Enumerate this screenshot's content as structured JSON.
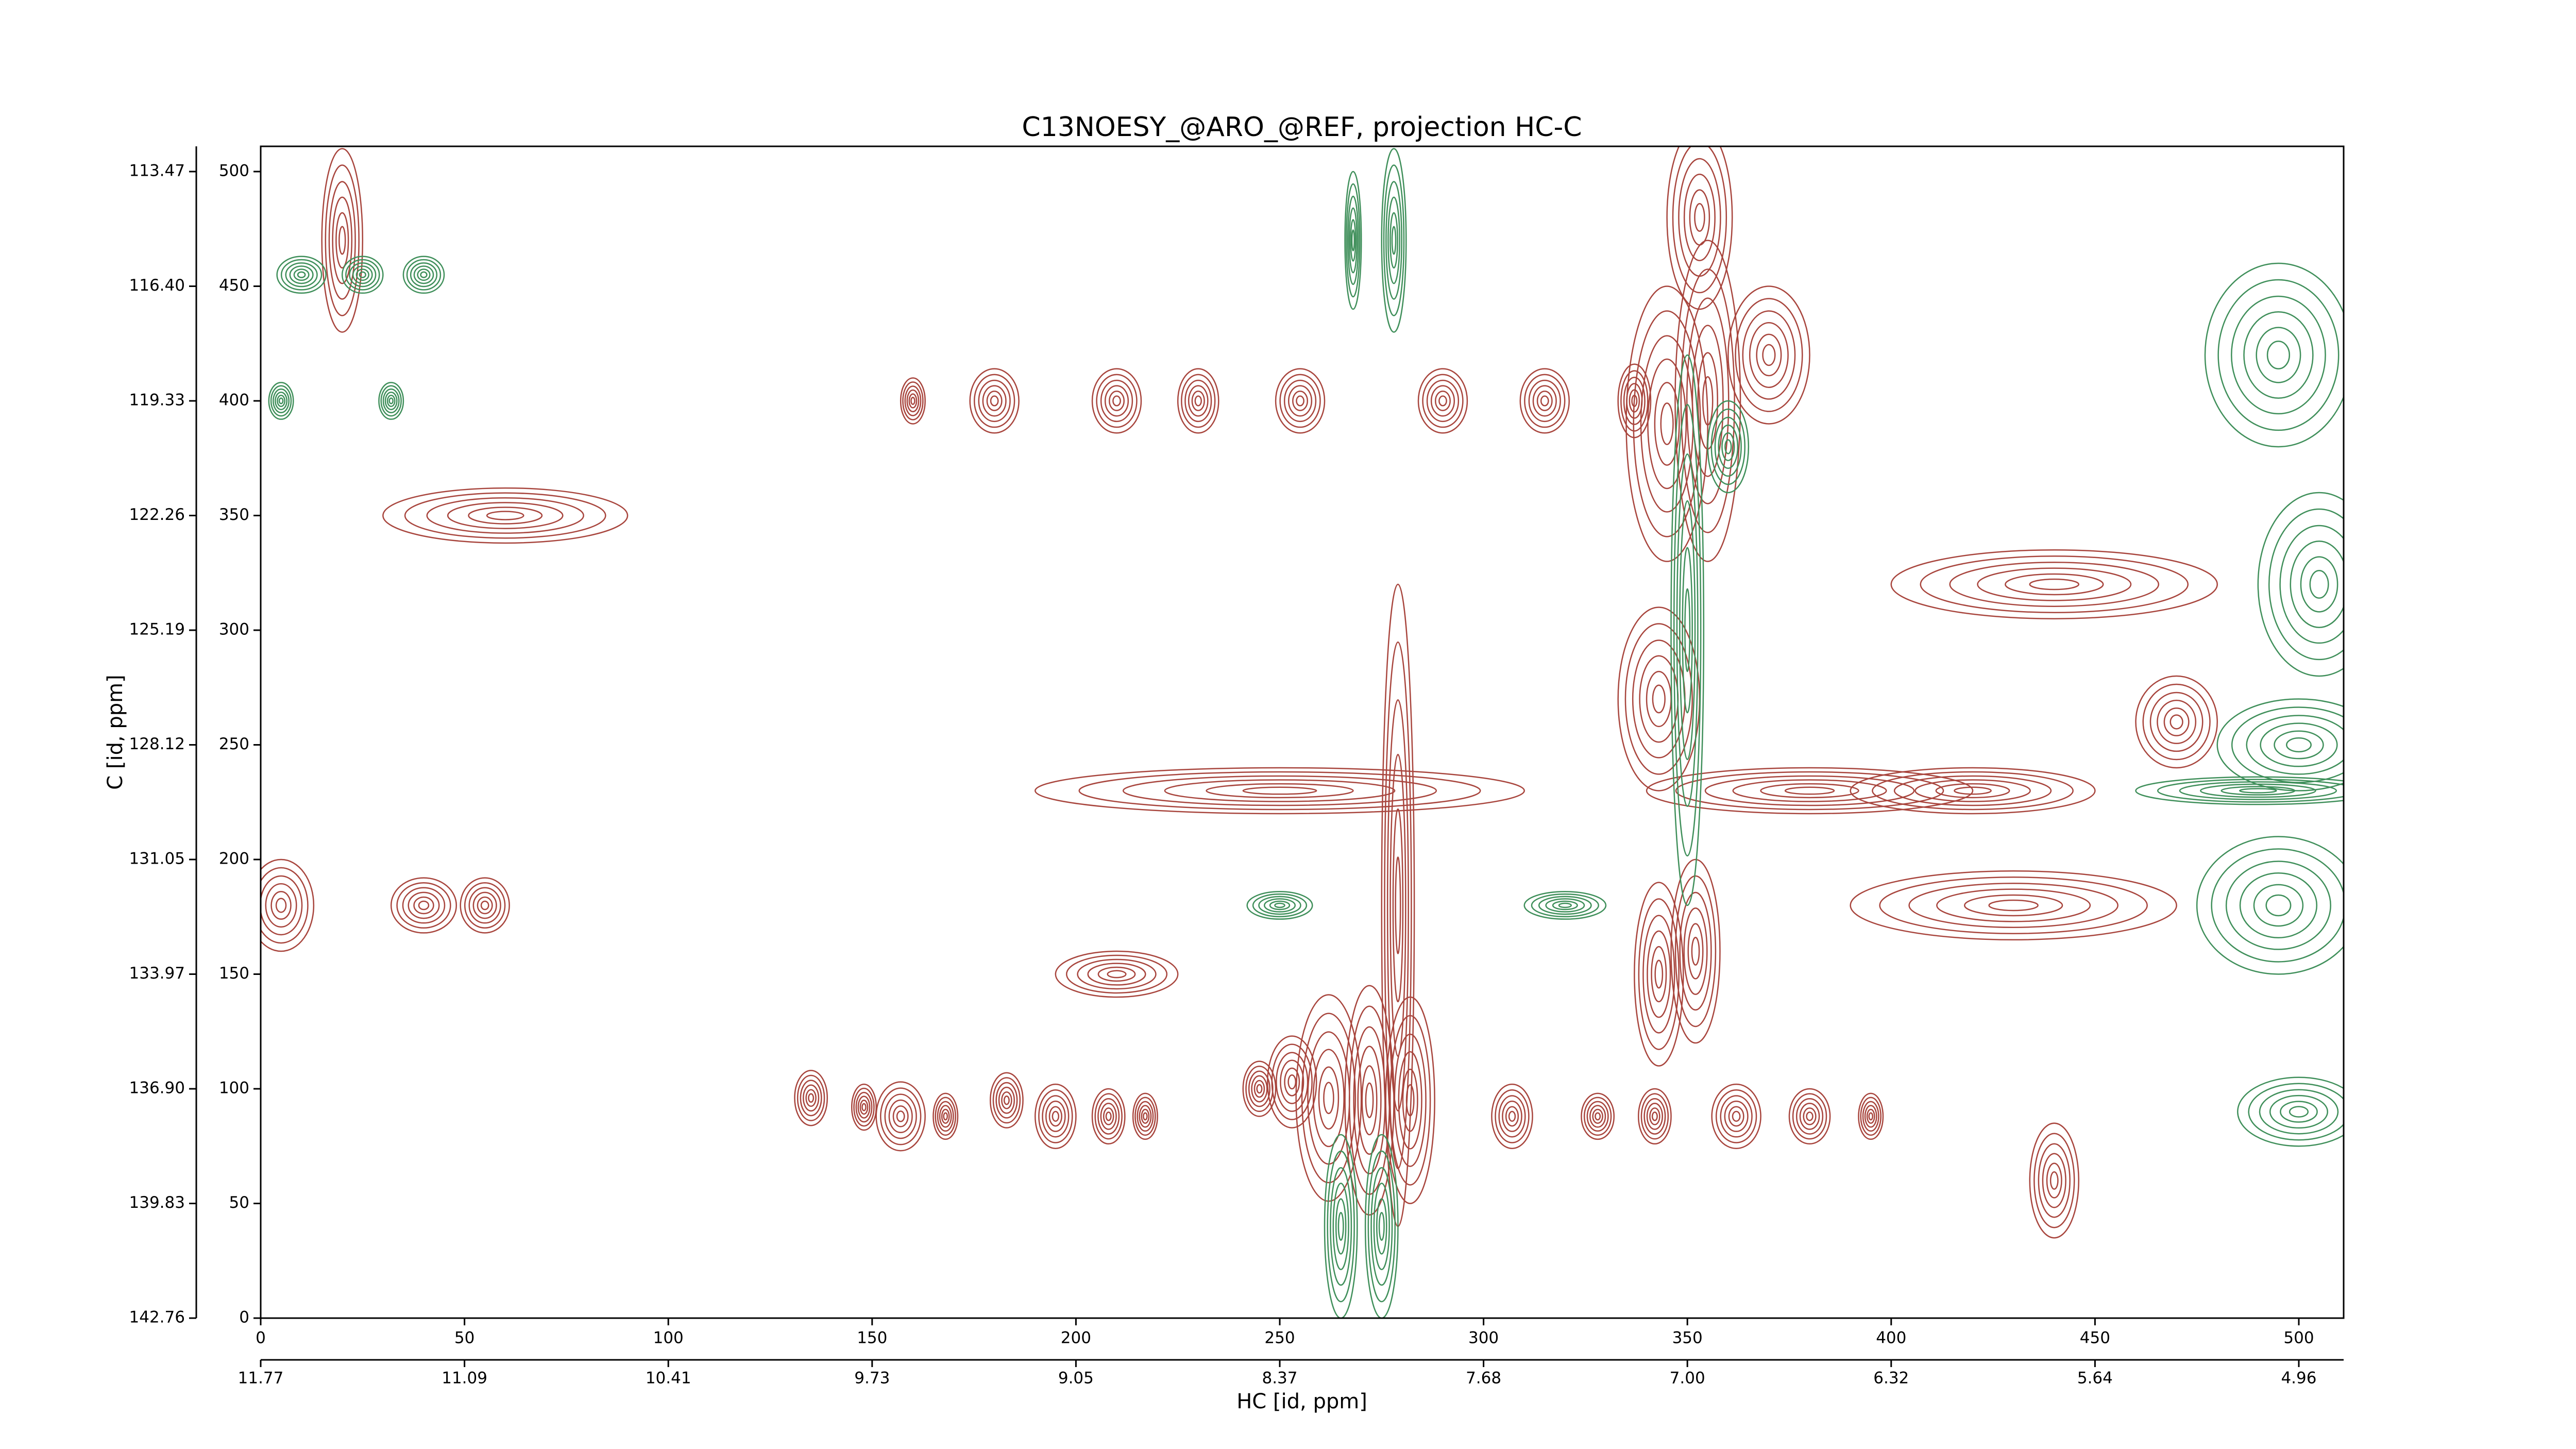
{
  "chart_data": {
    "type": "contour",
    "title": "C13NOESY_@ARO_@REF, projection HC-C",
    "xlabel": "HC [id, ppm]",
    "ylabel": "C [id, ppm]",
    "xlim": [
      0,
      511
    ],
    "ylim": [
      0,
      511
    ],
    "xticks": [
      0,
      50,
      100,
      150,
      200,
      250,
      300,
      350,
      400,
      450,
      500
    ],
    "yticks": [
      0,
      50,
      100,
      150,
      200,
      250,
      300,
      350,
      400,
      450,
      500
    ],
    "x2ticks": [
      {
        "value": 0,
        "label": "11.77"
      },
      {
        "value": 50,
        "label": "11.09"
      },
      {
        "value": 100,
        "label": "10.41"
      },
      {
        "value": 150,
        "label": "9.73"
      },
      {
        "value": 200,
        "label": "9.05"
      },
      {
        "value": 250,
        "label": "8.37"
      },
      {
        "value": 300,
        "label": "7.68"
      },
      {
        "value": 350,
        "label": "7.00"
      },
      {
        "value": 400,
        "label": "6.32"
      },
      {
        "value": 450,
        "label": "5.64"
      },
      {
        "value": 500,
        "label": "4.96"
      }
    ],
    "y2ticks": [
      {
        "value": 0,
        "label": "142.76"
      },
      {
        "value": 50,
        "label": "139.83"
      },
      {
        "value": 100,
        "label": "136.90"
      },
      {
        "value": 150,
        "label": "133.97"
      },
      {
        "value": 200,
        "label": "131.05"
      },
      {
        "value": 250,
        "label": "128.12"
      },
      {
        "value": 300,
        "label": "125.19"
      },
      {
        "value": 350,
        "label": "122.26"
      },
      {
        "value": 400,
        "label": "119.33"
      },
      {
        "value": 450,
        "label": "116.40"
      },
      {
        "value": 500,
        "label": "113.47"
      }
    ],
    "contours": [
      {
        "color": "#a8453d",
        "x": [
          135,
          148,
          157,
          168,
          183,
          195,
          208,
          217,
          245,
          253,
          262,
          272,
          282,
          307,
          328,
          342,
          362,
          380,
          395,
          160,
          180,
          210,
          230,
          255,
          290,
          315,
          337,
          345,
          355,
          343,
          352,
          279,
          5,
          40,
          55,
          370,
          430,
          440,
          470,
          420,
          343,
          353,
          250,
          380,
          440,
          210,
          60,
          20
        ],
        "y": [
          96,
          92,
          88,
          88,
          95,
          88,
          88,
          88,
          100,
          103,
          96,
          95,
          95,
          88,
          88,
          88,
          88,
          88,
          88,
          400,
          400,
          400,
          400,
          400,
          400,
          400,
          400,
          390,
          400,
          150,
          160,
          180,
          180,
          180,
          180,
          420,
          180,
          320,
          260,
          230,
          270,
          480,
          230,
          230,
          60,
          150,
          350,
          470
        ],
        "xwidth": [
          4,
          3,
          6,
          3,
          4,
          5,
          4,
          3,
          4,
          6,
          8,
          6,
          6,
          5,
          4,
          4,
          6,
          5,
          3,
          3,
          6,
          6,
          5,
          6,
          6,
          6,
          4,
          10,
          8,
          6,
          6,
          4,
          8,
          8,
          6,
          10,
          40,
          40,
          10,
          30,
          10,
          8,
          60,
          40,
          6,
          15,
          30,
          5
        ],
        "ywidth": [
          12,
          10,
          15,
          10,
          12,
          14,
          12,
          10,
          12,
          20,
          45,
          50,
          45,
          14,
          10,
          12,
          14,
          12,
          10,
          10,
          14,
          14,
          14,
          14,
          14,
          14,
          16,
          60,
          70,
          40,
          40,
          140,
          20,
          12,
          12,
          30,
          15,
          15,
          20,
          10,
          40,
          40,
          10,
          10,
          25,
          10,
          12,
          40
        ]
      },
      {
        "color": "#3f8f5a",
        "x": [
          10,
          25,
          40,
          278,
          268,
          265,
          275,
          350,
          360,
          495,
          500,
          505,
          495,
          500,
          490,
          32,
          5,
          250,
          320
        ],
        "y": [
          455,
          455,
          455,
          470,
          470,
          40,
          40,
          300,
          380,
          180,
          250,
          320,
          420,
          90,
          230,
          400,
          400,
          180,
          180
        ],
        "xwidth": [
          6,
          5,
          5,
          3,
          2,
          4,
          4,
          4,
          5,
          20,
          20,
          15,
          18,
          15,
          30,
          3,
          3,
          8,
          10
        ],
        "ywidth": [
          8,
          8,
          8,
          40,
          30,
          40,
          40,
          120,
          20,
          30,
          20,
          40,
          40,
          15,
          6,
          8,
          8,
          6,
          6
        ]
      }
    ]
  }
}
